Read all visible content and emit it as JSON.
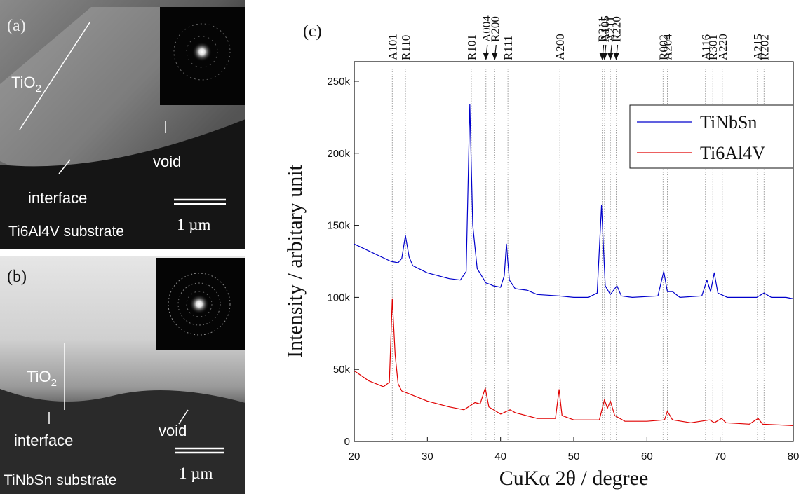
{
  "panels": [
    {
      "label": "(a)",
      "tio2": [
        "TiO",
        "2"
      ],
      "void": "void",
      "interface": "interface",
      "substrate": "Ti6Al4V substrate",
      "scale": "1 µm"
    },
    {
      "label": "(b)",
      "tio2": [
        "TiO",
        "2"
      ],
      "void": "void",
      "interface": "interface",
      "substrate": "TiNbSn substrate",
      "scale": "1 µm"
    }
  ],
  "chart_data": {
    "type": "line",
    "panel_label": "(c)",
    "x_label": "CuKα 2θ / degree",
    "y_label": "Intensity / arbitary unit",
    "xlim": [
      20,
      80
    ],
    "xticks": [
      20,
      30,
      40,
      50,
      60,
      70,
      80
    ],
    "ylim": [
      0,
      263600
    ],
    "yticks": [
      {
        "value": 0,
        "label": "0"
      },
      {
        "value": 50000,
        "label": "50k"
      },
      {
        "value": 100000,
        "label": "100k"
      },
      {
        "value": 150000,
        "label": "150k"
      },
      {
        "value": 200000,
        "label": "200k"
      },
      {
        "value": 250000,
        "label": "250k"
      }
    ],
    "legend": "upper right",
    "series": [
      {
        "name": "TiNbSn",
        "color": "#0000cc",
        "x": [
          20,
          25,
          26,
          26.5,
          27,
          27.5,
          28,
          30,
          33,
          34.5,
          35.3,
          35.8,
          36.2,
          36.8,
          38,
          38.6,
          39,
          40,
          40.5,
          40.8,
          41.2,
          42,
          43.6,
          45,
          48,
          50,
          52,
          53.2,
          53.8,
          54.3,
          55,
          55.9,
          56.5,
          58,
          61.5,
          62.3,
          62.8,
          63.5,
          64.5,
          67.5,
          68.2,
          68.7,
          69.2,
          69.7,
          71,
          75,
          76,
          77,
          79,
          80
        ],
        "values": [
          137000,
          125000,
          124000,
          127000,
          143000,
          128000,
          122000,
          117000,
          113000,
          112000,
          118000,
          234000,
          150000,
          120000,
          110000,
          109000,
          108000,
          107000,
          115000,
          137000,
          112000,
          106000,
          105000,
          102000,
          101000,
          100000,
          100000,
          103000,
          164000,
          108000,
          102000,
          108000,
          101000,
          100000,
          101000,
          118000,
          104000,
          104000,
          100000,
          101000,
          112000,
          104000,
          117000,
          103000,
          100000,
          100000,
          103000,
          100000,
          100000,
          99000
        ]
      },
      {
        "name": "Ti6Al4V",
        "color": "#e00000",
        "x": [
          20,
          22,
          24,
          24.8,
          25.2,
          25.6,
          26,
          26.5,
          27.5,
          30,
          33,
          35,
          36.5,
          37.2,
          37.9,
          38.4,
          40,
          41.3,
          42,
          45,
          47.5,
          48,
          48.4,
          50,
          53.5,
          54.2,
          54.6,
          55,
          55.6,
          57,
          60,
          62.4,
          62.8,
          63.5,
          66,
          68.6,
          69.2,
          70.2,
          70.8,
          74,
          75.2,
          75.8,
          80
        ],
        "values": [
          49000,
          42000,
          38000,
          41000,
          99000,
          60000,
          40000,
          35000,
          33000,
          28000,
          24000,
          22000,
          27000,
          26000,
          37000,
          24000,
          19000,
          22000,
          20000,
          16000,
          16000,
          36000,
          18000,
          15000,
          15000,
          29000,
          23000,
          28000,
          18000,
          14000,
          14000,
          15000,
          21000,
          15000,
          13000,
          15000,
          13000,
          16000,
          13000,
          12000,
          16000,
          12000,
          11000
        ]
      }
    ],
    "peaks": [
      {
        "label": "A101",
        "x": 25.2
      },
      {
        "label": "R110",
        "x": 27.0
      },
      {
        "label": "R101",
        "x": 36.0
      },
      {
        "label": "A004",
        "x": 38.0,
        "arrow": true
      },
      {
        "label": "R200",
        "x": 39.2,
        "arrow": true
      },
      {
        "label": "R111",
        "x": 41.0
      },
      {
        "label": "A200",
        "x": 48.1
      },
      {
        "label": "R211",
        "x": 53.9,
        "arrow": true
      },
      {
        "label": "A105",
        "x": 54.2,
        "arrow": true
      },
      {
        "label": "A211",
        "x": 55.0,
        "arrow": true
      },
      {
        "label": "R220",
        "x": 55.8,
        "arrow": true
      },
      {
        "label": "R002",
        "x": 62.2
      },
      {
        "label": "A204",
        "x": 62.8
      },
      {
        "label": "A116",
        "x": 68.0
      },
      {
        "label": "R301",
        "x": 69.0
      },
      {
        "label": "A220",
        "x": 70.3
      },
      {
        "label": "A215",
        "x": 75.1
      },
      {
        "label": "R202",
        "x": 76.0
      }
    ]
  }
}
